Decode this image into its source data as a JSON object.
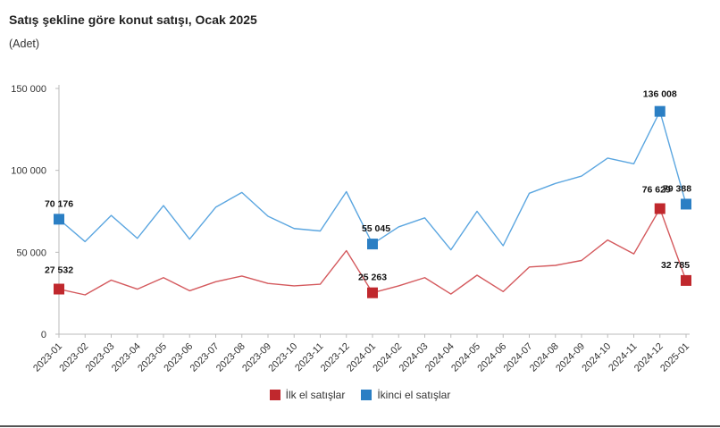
{
  "chart_data": {
    "type": "line",
    "title": "Satış şekline göre konut satışı, Ocak 2025",
    "unit_label": "(Adet)",
    "x": [
      "2023-01",
      "2023-02",
      "2023-03",
      "2023-04",
      "2023-05",
      "2023-06",
      "2023-07",
      "2023-08",
      "2023-09",
      "2023-10",
      "2023-11",
      "2023-12",
      "2024-01",
      "2024-02",
      "2024-03",
      "2024-04",
      "2024-05",
      "2024-06",
      "2024-07",
      "2024-08",
      "2024-09",
      "2024-10",
      "2024-11",
      "2024-12",
      "2025-01"
    ],
    "y_ticks": [
      {
        "value": 0,
        "label": "0"
      },
      {
        "value": 50000,
        "label": "50 000"
      },
      {
        "value": 100000,
        "label": "100 000"
      },
      {
        "value": 150000,
        "label": "150 000"
      }
    ],
    "ylim": [
      0,
      150000
    ],
    "series": [
      {
        "name": "İlk el satışlar",
        "color": "#c0282d",
        "line_color": "#d4595d",
        "values": [
          27532,
          24000,
          33000,
          27500,
          34500,
          26500,
          32000,
          35500,
          31000,
          29500,
          30500,
          51000,
          25263,
          29500,
          34500,
          24500,
          36000,
          26000,
          41000,
          42000,
          45000,
          57500,
          49000,
          76629,
          32785
        ],
        "labels": [
          {
            "index": 0,
            "text": "27 532"
          },
          {
            "index": 12,
            "text": "25 263"
          },
          {
            "index": 23,
            "text": "76 629"
          },
          {
            "index": 24,
            "text": "32 785"
          }
        ]
      },
      {
        "name": "İkinci el satışlar",
        "color": "#2b7fc4",
        "line_color": "#5ba6e0",
        "values": [
          70176,
          56500,
          72500,
          58500,
          78500,
          58000,
          77500,
          86500,
          72000,
          64500,
          63000,
          87000,
          55045,
          65500,
          71000,
          51500,
          75000,
          54000,
          86000,
          92000,
          96500,
          107500,
          104000,
          136008,
          79388
        ],
        "labels": [
          {
            "index": 0,
            "text": "70 176"
          },
          {
            "index": 12,
            "text": "55 045"
          },
          {
            "index": 23,
            "text": "136 008"
          },
          {
            "index": 24,
            "text": "79 388"
          }
        ]
      }
    ],
    "legend_position": "bottom-center"
  }
}
